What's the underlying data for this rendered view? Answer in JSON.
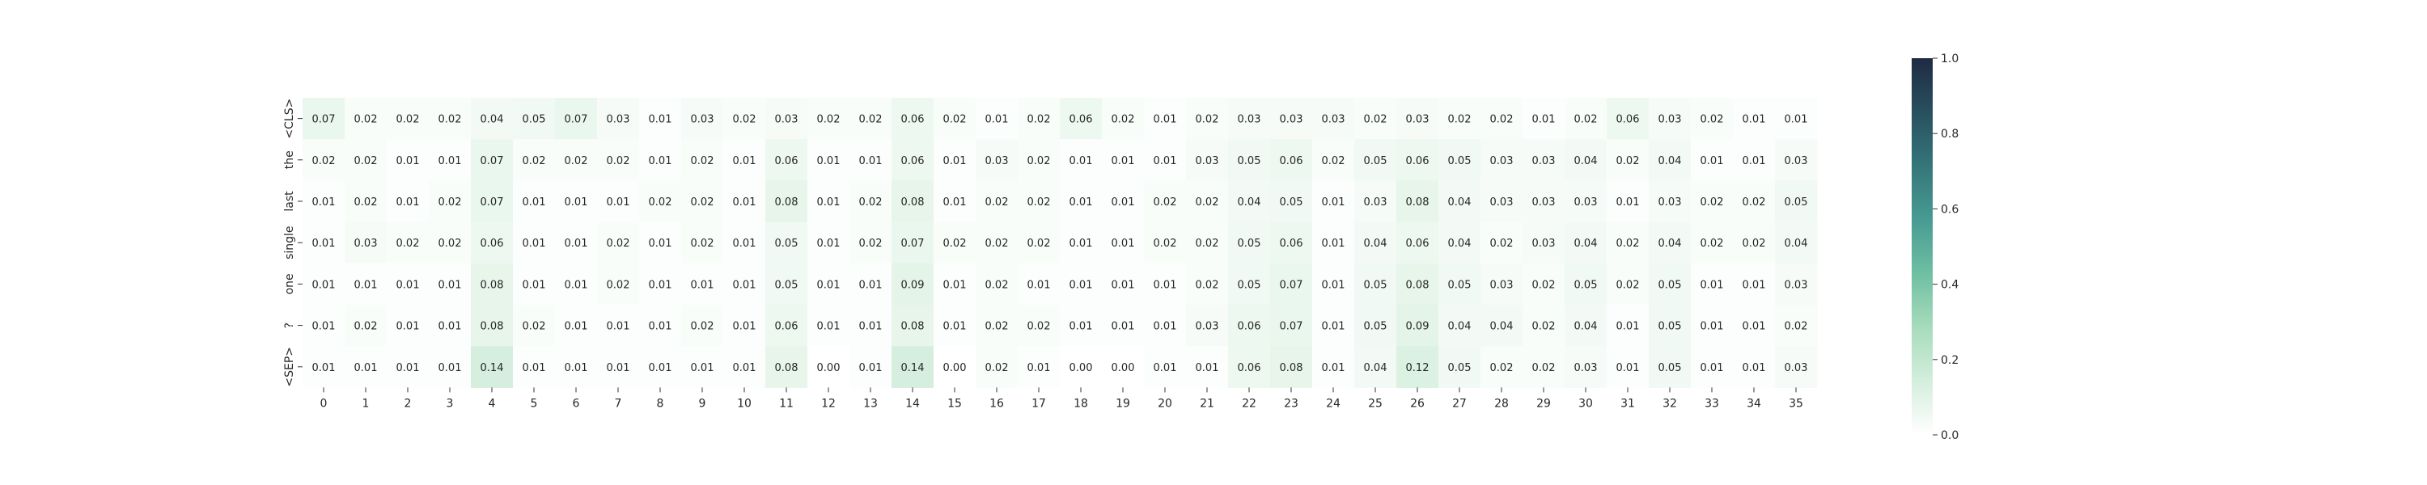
{
  "chart_data": {
    "type": "heatmap",
    "title": "",
    "xlabel": "",
    "ylabel": "",
    "y_labels": [
      "<CLS>",
      "the",
      "last",
      "single",
      "one",
      "?",
      "<SEP>"
    ],
    "x_labels": [
      "0",
      "1",
      "2",
      "3",
      "4",
      "5",
      "6",
      "7",
      "8",
      "9",
      "10",
      "11",
      "12",
      "13",
      "14",
      "15",
      "16",
      "17",
      "18",
      "19",
      "20",
      "21",
      "22",
      "23",
      "24",
      "25",
      "26",
      "27",
      "28",
      "29",
      "30",
      "31",
      "32",
      "33",
      "34",
      "35"
    ],
    "values": [
      [
        0.07,
        0.02,
        0.02,
        0.02,
        0.04,
        0.05,
        0.07,
        0.03,
        0.01,
        0.03,
        0.02,
        0.03,
        0.02,
        0.02,
        0.06,
        0.02,
        0.01,
        0.02,
        0.06,
        0.02,
        0.01,
        0.02,
        0.03,
        0.03,
        0.03,
        0.02,
        0.03,
        0.02,
        0.02,
        0.01,
        0.02,
        0.06,
        0.03,
        0.02,
        0.01,
        0.01
      ],
      [
        0.02,
        0.02,
        0.01,
        0.01,
        0.07,
        0.02,
        0.02,
        0.02,
        0.01,
        0.02,
        0.01,
        0.06,
        0.01,
        0.01,
        0.06,
        0.01,
        0.03,
        0.02,
        0.01,
        0.01,
        0.01,
        0.03,
        0.05,
        0.06,
        0.02,
        0.05,
        0.06,
        0.05,
        0.03,
        0.03,
        0.04,
        0.02,
        0.04,
        0.01,
        0.01,
        0.03
      ],
      [
        0.01,
        0.02,
        0.01,
        0.02,
        0.07,
        0.01,
        0.01,
        0.01,
        0.02,
        0.02,
        0.01,
        0.08,
        0.01,
        0.02,
        0.08,
        0.01,
        0.02,
        0.02,
        0.01,
        0.01,
        0.02,
        0.02,
        0.04,
        0.05,
        0.01,
        0.03,
        0.08,
        0.04,
        0.03,
        0.03,
        0.03,
        0.01,
        0.03,
        0.02,
        0.02,
        0.05
      ],
      [
        0.01,
        0.03,
        0.02,
        0.02,
        0.06,
        0.01,
        0.01,
        0.02,
        0.01,
        0.02,
        0.01,
        0.05,
        0.01,
        0.02,
        0.07,
        0.02,
        0.02,
        0.02,
        0.01,
        0.01,
        0.02,
        0.02,
        0.05,
        0.06,
        0.01,
        0.04,
        0.06,
        0.04,
        0.02,
        0.03,
        0.04,
        0.02,
        0.04,
        0.02,
        0.02,
        0.04
      ],
      [
        0.01,
        0.01,
        0.01,
        0.01,
        0.08,
        0.01,
        0.01,
        0.02,
        0.01,
        0.01,
        0.01,
        0.05,
        0.01,
        0.01,
        0.09,
        0.01,
        0.02,
        0.01,
        0.01,
        0.01,
        0.01,
        0.02,
        0.05,
        0.07,
        0.01,
        0.05,
        0.08,
        0.05,
        0.03,
        0.02,
        0.05,
        0.02,
        0.05,
        0.01,
        0.01,
        0.03
      ],
      [
        0.01,
        0.02,
        0.01,
        0.01,
        0.08,
        0.02,
        0.01,
        0.01,
        0.01,
        0.02,
        0.01,
        0.06,
        0.01,
        0.01,
        0.08,
        0.01,
        0.02,
        0.02,
        0.01,
        0.01,
        0.01,
        0.03,
        0.06,
        0.07,
        0.01,
        0.05,
        0.09,
        0.04,
        0.04,
        0.02,
        0.04,
        0.01,
        0.05,
        0.01,
        0.01,
        0.02
      ],
      [
        0.01,
        0.01,
        0.01,
        0.01,
        0.14,
        0.01,
        0.01,
        0.01,
        0.01,
        0.01,
        0.01,
        0.08,
        0.0,
        0.01,
        0.14,
        0.0,
        0.02,
        0.01,
        0.0,
        0.0,
        0.01,
        0.01,
        0.06,
        0.08,
        0.01,
        0.04,
        0.12,
        0.05,
        0.02,
        0.02,
        0.03,
        0.01,
        0.05,
        0.01,
        0.01,
        0.03
      ]
    ],
    "value_format": "0.00",
    "colorbar": {
      "min": 0.0,
      "max": 1.0,
      "ticks": [
        "0.0",
        "0.2",
        "0.4",
        "0.6",
        "0.8",
        "1.0"
      ],
      "colors": [
        "#ffffff",
        "#d4eedc",
        "#a6dcbb",
        "#6fbfa3",
        "#489b92",
        "#357679",
        "#28505e",
        "#1f2b43"
      ]
    },
    "grid": false,
    "legend": "colorbar-right"
  }
}
